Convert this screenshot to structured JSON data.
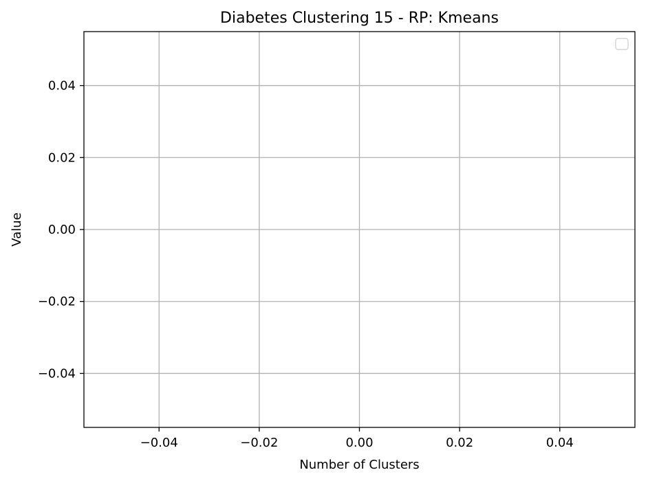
{
  "chart_data": {
    "type": "line",
    "title": "Diabetes Clustering 15 - RP: Kmeans",
    "xlabel": "Number of Clusters",
    "ylabel": "Value",
    "xlim": [
      -0.055,
      0.055
    ],
    "ylim": [
      -0.055,
      0.055
    ],
    "xticks": [
      -0.04,
      -0.02,
      0.0,
      0.02,
      0.04
    ],
    "xtick_labels": [
      "−0.04",
      "−0.02",
      "0.00",
      "0.02",
      "0.04"
    ],
    "yticks": [
      0.04,
      0.02,
      0.0,
      -0.02,
      -0.04
    ],
    "ytick_labels": [
      "0.04",
      "0.02",
      "0.00",
      "−0.02",
      "−0.04"
    ],
    "grid": true,
    "legend": "top-right",
    "legend_entries": [],
    "series": [],
    "colors": {
      "grid": "#b0b0b0",
      "axes": "#000000",
      "legend_border": "#cccccc"
    }
  }
}
